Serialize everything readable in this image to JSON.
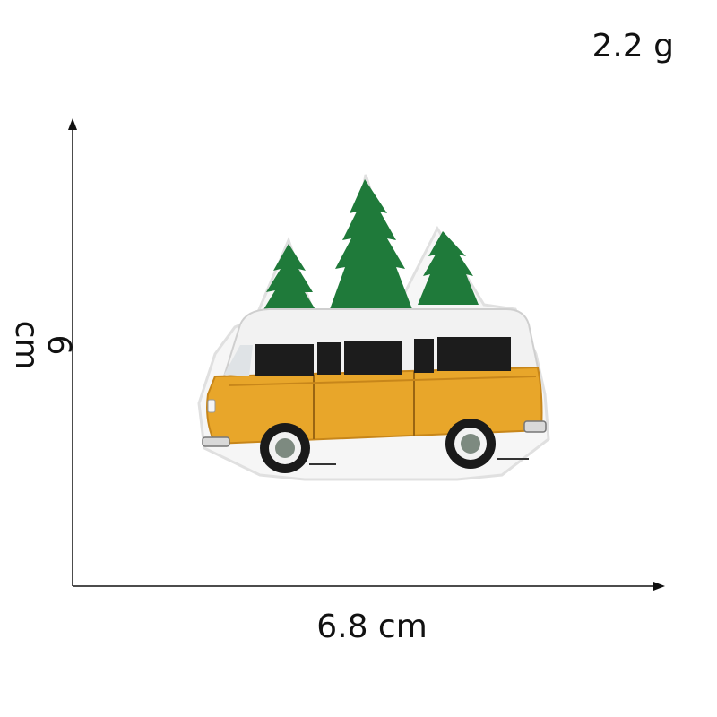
{
  "weight_label": "2.2 g",
  "width_label": "6.8 cm",
  "height_label": "6 cm",
  "colors": {
    "tree_green": "#1f7a3a",
    "bus_orange": "#e8a62a",
    "roof_white": "#f2f2f2",
    "window_black": "#1c1c1c",
    "wheel_gray": "#7d8a80"
  },
  "product": "embroidered patch of orange van with pine trees"
}
